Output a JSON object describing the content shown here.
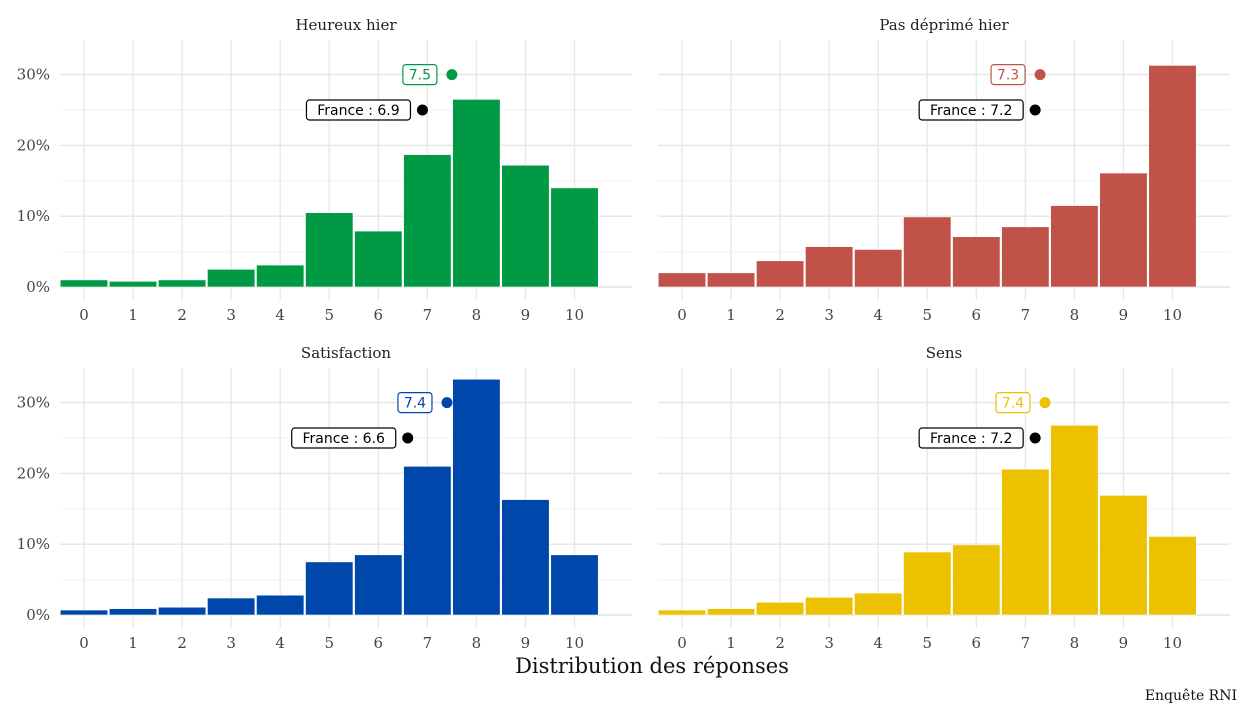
{
  "figure": {
    "xlabel": "Distribution des réponses",
    "caption": "Enquête RNI"
  },
  "chart_data": [
    {
      "type": "bar",
      "title": "Heureux hier",
      "color": "#009a44",
      "categories": [
        "0",
        "1",
        "2",
        "3",
        "4",
        "5",
        "6",
        "7",
        "8",
        "9",
        "10"
      ],
      "values": [
        1.0,
        0.8,
        1.0,
        2.5,
        3.1,
        10.5,
        7.9,
        18.7,
        26.5,
        17.2,
        14.0
      ],
      "ylim": [
        0,
        33
      ],
      "yticks": [
        "0%",
        "10%",
        "20%",
        "30%"
      ],
      "grid": true,
      "mean": {
        "value": 7.5,
        "label": "7.5",
        "y": 30
      },
      "france": {
        "value": 6.9,
        "label": "France : 6.9",
        "y": 25
      }
    },
    {
      "type": "bar",
      "title": "Pas déprimé hier",
      "color": "#c0524a",
      "categories": [
        "0",
        "1",
        "2",
        "3",
        "4",
        "5",
        "6",
        "7",
        "8",
        "9",
        "10"
      ],
      "values": [
        2.0,
        2.0,
        3.7,
        5.7,
        5.3,
        9.9,
        7.1,
        8.5,
        11.5,
        16.1,
        31.3
      ],
      "ylim": [
        0,
        33
      ],
      "yticks": [
        "0%",
        "10%",
        "20%",
        "30%"
      ],
      "grid": true,
      "mean": {
        "value": 7.3,
        "label": "7.3",
        "y": 30
      },
      "france": {
        "value": 7.2,
        "label": "France : 7.2",
        "y": 25
      }
    },
    {
      "type": "bar",
      "title": "Satisfaction",
      "color": "#0047ab",
      "categories": [
        "0",
        "1",
        "2",
        "3",
        "4",
        "5",
        "6",
        "7",
        "8",
        "9",
        "10"
      ],
      "values": [
        0.7,
        0.9,
        1.1,
        2.4,
        2.8,
        7.5,
        8.5,
        21.0,
        33.3,
        16.3,
        8.5
      ],
      "ylim": [
        0,
        33
      ],
      "yticks": [
        "0%",
        "10%",
        "20%",
        "30%"
      ],
      "grid": true,
      "mean": {
        "value": 7.4,
        "label": "7.4",
        "y": 30
      },
      "france": {
        "value": 6.6,
        "label": "France : 6.6",
        "y": 25
      }
    },
    {
      "type": "bar",
      "title": "Sens",
      "color": "#ecc100",
      "categories": [
        "0",
        "1",
        "2",
        "3",
        "4",
        "5",
        "6",
        "7",
        "8",
        "9",
        "10"
      ],
      "values": [
        0.7,
        0.9,
        1.8,
        2.5,
        3.1,
        8.9,
        9.9,
        20.6,
        26.8,
        16.9,
        11.1
      ],
      "ylim": [
        0,
        33
      ],
      "yticks": [
        "0%",
        "10%",
        "20%",
        "30%"
      ],
      "grid": true,
      "mean": {
        "value": 7.4,
        "label": "7.4",
        "y": 30
      },
      "france": {
        "value": 7.2,
        "label": "France : 7.2",
        "y": 25
      }
    }
  ]
}
